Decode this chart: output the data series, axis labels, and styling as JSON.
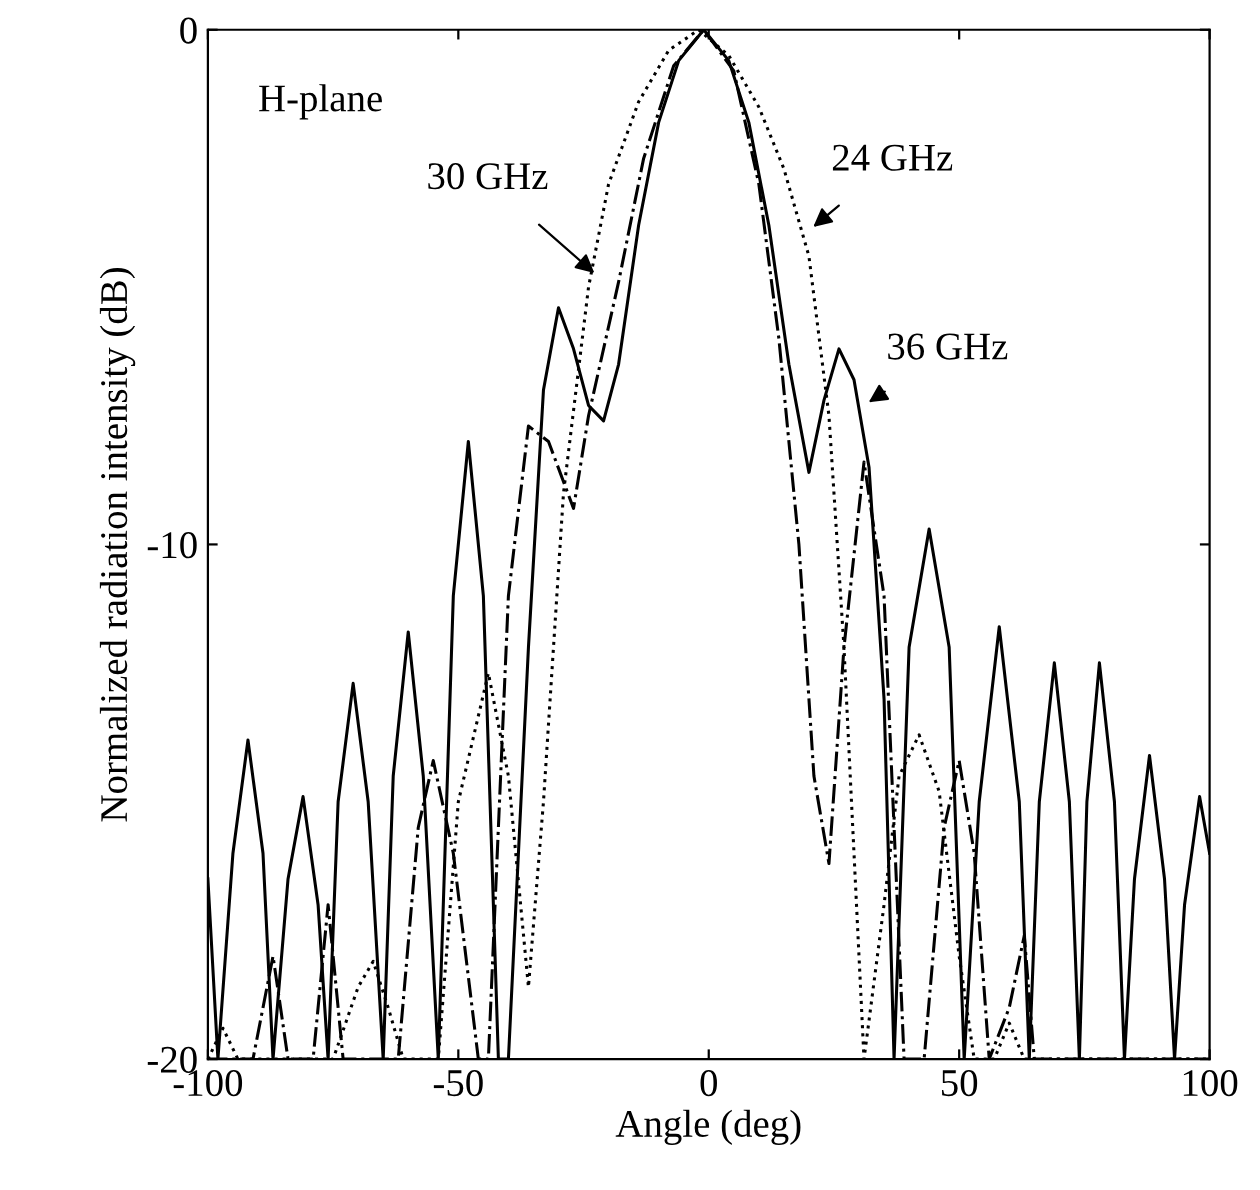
{
  "chart_data": {
    "type": "line",
    "xlabel": "Angle (deg)",
    "ylabel": "Normalized radiation intensity (dB)",
    "xlim": [
      -100,
      100
    ],
    "ylim": [
      -20,
      0
    ],
    "xticks": [
      -100,
      -50,
      0,
      50,
      100
    ],
    "yticks": [
      -20,
      -10,
      0
    ],
    "grid": false,
    "legend": false,
    "marker": "none",
    "annotations": [
      "H-plane",
      {
        "text": "30 GHz",
        "x": -22,
        "y": -4.8
      },
      {
        "text": "24 GHz",
        "x": 20,
        "y": -3.9
      },
      {
        "text": "36 GHz",
        "x": 31,
        "y": -7.3
      }
    ],
    "series": [
      {
        "color": "#000000",
        "line_style": "dotted",
        "x": [
          -100,
          -97,
          -94,
          -75,
          -70,
          -67,
          -64,
          -61,
          -54,
          -50,
          -44,
          -40,
          -36,
          -33,
          -29,
          -24,
          -20,
          -14,
          -8,
          -2,
          4,
          10,
          15,
          20,
          24,
          27,
          31,
          35,
          38,
          42,
          46,
          50,
          53,
          57,
          60,
          63,
          100
        ],
        "values": [
          -20,
          -19.4,
          -20,
          -20,
          -18.6,
          -18.1,
          -19,
          -20,
          -20,
          -15,
          -12.5,
          -14.5,
          -18.6,
          -15,
          -9,
          -5,
          -3,
          -1.4,
          -0.4,
          0,
          -0.5,
          -1.5,
          -2.7,
          -4.4,
          -7.5,
          -12,
          -20,
          -17,
          -14.5,
          -13.7,
          -14.8,
          -18,
          -20,
          -20,
          -19.3,
          -20,
          -20
        ]
      },
      {
        "color": "#000000",
        "line_style": "dashdot",
        "x": [
          -100,
          -91,
          -87,
          -84,
          -79,
          -76,
          -73,
          -62,
          -58,
          -55,
          -51,
          -46,
          -44,
          -40,
          -36,
          -32,
          -27,
          -24,
          -18,
          -13,
          -7,
          -1,
          5,
          10,
          14,
          18,
          21,
          24,
          27,
          31,
          35,
          39,
          43,
          47,
          50,
          53,
          56,
          60,
          63,
          65,
          100
        ],
        "values": [
          -20,
          -20,
          -18,
          -20,
          -20,
          -17,
          -20,
          -20,
          -15.5,
          -14.2,
          -16,
          -20,
          -20,
          -11,
          -7.7,
          -8,
          -9.3,
          -7.5,
          -4.9,
          -2.5,
          -0.7,
          0,
          -0.8,
          -3,
          -6,
          -10,
          -14.5,
          -16.2,
          -12,
          -8.4,
          -11,
          -20,
          -20,
          -15.5,
          -14.2,
          -16,
          -20,
          -19,
          -17.6,
          -20,
          -20
        ]
      },
      {
        "color": "#000000",
        "line_style": "solid",
        "x": [
          -100,
          -98,
          -95,
          -92,
          -89,
          -87,
          -84,
          -81,
          -78,
          -76,
          -74,
          -71,
          -68,
          -65,
          -63,
          -60,
          -57,
          -54,
          -51,
          -48,
          -45,
          -42,
          -40,
          -36,
          -33,
          -30,
          -27,
          -24,
          -21,
          -18,
          -14,
          -10,
          -6,
          -1,
          4,
          8,
          12,
          16,
          20,
          23,
          26,
          29,
          32,
          35,
          37,
          40,
          44,
          48,
          51,
          54,
          58,
          62,
          64,
          66,
          69,
          72,
          74,
          75.5,
          78,
          81,
          83,
          85,
          88,
          91,
          93,
          95,
          98,
          100
        ],
        "values": [
          -16.5,
          -20,
          -16,
          -13.8,
          -16,
          -20,
          -16.5,
          -14.9,
          -17,
          -20,
          -15,
          -12.7,
          -15,
          -20,
          -14.5,
          -11.7,
          -14.5,
          -20,
          -11,
          -8,
          -11,
          -20,
          -20,
          -12,
          -7,
          -5.4,
          -6.2,
          -7.3,
          -7.6,
          -6.5,
          -3.8,
          -1.8,
          -0.6,
          0,
          -0.6,
          -1.8,
          -3.8,
          -6.5,
          -8.6,
          -7.2,
          -6.2,
          -6.8,
          -8.5,
          -13,
          -20,
          -12,
          -9.7,
          -12,
          -20,
          -15,
          -11.6,
          -15,
          -20,
          -15,
          -12.3,
          -15,
          -20,
          -15,
          -12.3,
          -15,
          -20,
          -16.5,
          -14.1,
          -16.5,
          -20,
          -17,
          -14.9,
          -16
        ]
      }
    ]
  }
}
